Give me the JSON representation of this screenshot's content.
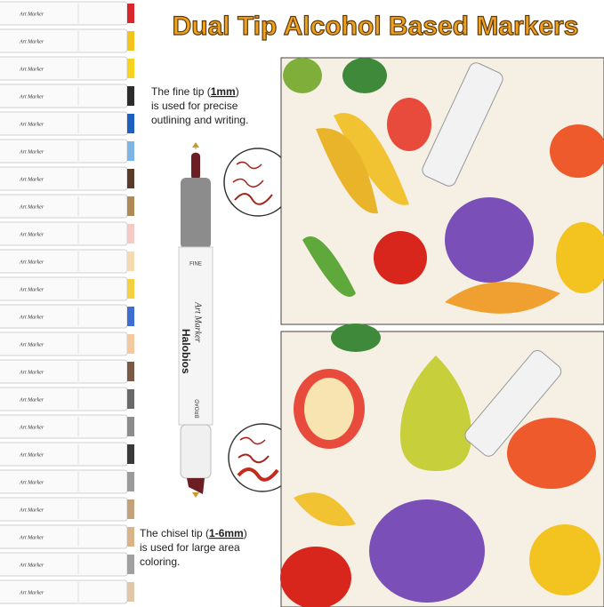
{
  "title": "Dual Tip Alcohol Based Markers",
  "fine_tip": {
    "prefix": "The fine tip (",
    "size": "1mm",
    "suffix": ")",
    "line2": "is used for precise",
    "line3": "outlining and writing."
  },
  "chisel_tip": {
    "prefix": "The chisel tip (",
    "size": "1-6mm",
    "suffix": ")",
    "line2": "is used for large area",
    "line3": "coloring."
  },
  "marker": {
    "brand": "Halobios",
    "model": "Art Marker",
    "fine_label": "FINE",
    "broad_label": "BROAD"
  }
}
